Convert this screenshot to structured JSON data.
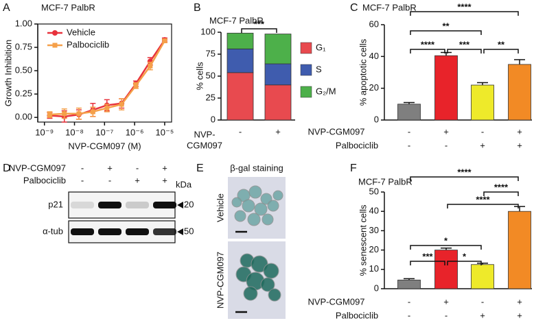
{
  "chart_data": [
    {
      "panel": "A",
      "type": "line",
      "title": "MCF-7 PalbR",
      "xlabel": "NVP-CGM097 (M)",
      "ylabel": "Growth Inhibition",
      "xscale": "log",
      "legend": "upper left",
      "x": [
        1.5e-09,
        4.6e-09,
        1.4e-08,
        4.1e-08,
        1.2e-07,
        3.7e-07,
        1.1e-06,
        3.3e-06,
        1e-05
      ],
      "series": [
        {
          "name": "Vehicle",
          "color": "#e8323c",
          "values": [
            0.02,
            0.01,
            0.03,
            0.08,
            0.13,
            0.15,
            0.36,
            0.6,
            0.83
          ],
          "errors": [
            0.03,
            0.06,
            0.05,
            0.07,
            0.06,
            0.05,
            0.03,
            0.04,
            0.02
          ]
        },
        {
          "name": "Palbociclib",
          "color": "#f5a04a",
          "values": [
            0.03,
            0.04,
            0.04,
            0.06,
            0.1,
            0.14,
            0.34,
            0.55,
            0.82
          ],
          "errors": [
            0.03,
            0.05,
            0.06,
            0.05,
            0.04,
            0.06,
            0.03,
            0.04,
            0.02
          ]
        }
      ],
      "xlim": [
        6e-10,
        1.7e-05
      ],
      "xticks": [
        {
          "value": 1e-09,
          "label": "10⁻⁹"
        },
        {
          "value": 1e-08,
          "label": "10⁻⁸"
        },
        {
          "value": 1e-07,
          "label": "10⁻⁷"
        },
        {
          "value": 1e-06,
          "label": "10⁻⁶"
        },
        {
          "value": 1e-05,
          "label": "10⁻⁵"
        }
      ],
      "ylim": [
        -0.05,
        1.0
      ],
      "yticks": [
        {
          "value": 0,
          "label": "0.00"
        },
        {
          "value": 0.25,
          "label": "0.25"
        },
        {
          "value": 0.5,
          "label": "0.50"
        },
        {
          "value": 0.75,
          "label": "0.75"
        },
        {
          "value": 1,
          "label": "1.00"
        }
      ]
    },
    {
      "panel": "B",
      "type": "stacked_bar",
      "title": "MCF-7 PalbR",
      "ylabel": "% cells",
      "xlabel": [
        "NVP-",
        "CGM097"
      ],
      "categories": [
        "-",
        "+"
      ],
      "series": [
        {
          "name": "G₁",
          "color": "#e84a4f",
          "values": [
            54,
            40
          ]
        },
        {
          "name": "S",
          "color": "#3f5cae",
          "values": [
            27,
            24
          ]
        },
        {
          "name": "G₂/M",
          "color": "#4db04a",
          "values": [
            18,
            34
          ]
        }
      ],
      "ylim": [
        0,
        100
      ],
      "yticks": [
        0,
        25,
        50,
        75,
        100
      ],
      "comparisons": [
        {
          "label": "***",
          "bars": [
            0,
            1
          ]
        }
      ]
    },
    {
      "panel": "C",
      "type": "bar",
      "title": "MCF-7 PalbR",
      "ylabel": "% apoptotic cells",
      "values": [
        10,
        40.5,
        22,
        35
      ],
      "errors": [
        1,
        2,
        1.5,
        3
      ],
      "colors": [
        "#7f7f7f",
        "#e8232a",
        "#eeea2a",
        "#f28a25"
      ],
      "conditions": [
        {
          "label": "NVP-CGM097",
          "signs": [
            "-",
            "+",
            "-",
            "+"
          ]
        },
        {
          "label": "Palbociclib",
          "signs": [
            "-",
            "-",
            "+",
            "+"
          ]
        }
      ],
      "ylim": [
        0,
        60
      ],
      "yticks": [
        0,
        20,
        40,
        60
      ],
      "comparisons": [
        {
          "label": "****",
          "bars": [
            0,
            3
          ]
        },
        {
          "label": "**",
          "bars": [
            0,
            2
          ]
        },
        {
          "label": "****",
          "bars": [
            0,
            1
          ]
        },
        {
          "label": "***",
          "bars": [
            1,
            2
          ]
        },
        {
          "label": "**",
          "bars": [
            2,
            3
          ]
        }
      ]
    },
    {
      "panel": "F",
      "type": "bar",
      "title": "MCF-7 PalbR",
      "ylabel": "% senescent cells",
      "values": [
        4.5,
        20,
        12.5,
        40
      ],
      "errors": [
        0.7,
        1,
        0.7,
        2.5
      ],
      "colors": [
        "#7f7f7f",
        "#e8232a",
        "#eeea2a",
        "#f28a25"
      ],
      "conditions": [
        {
          "label": "NVP-CGM097",
          "signs": [
            "-",
            "+",
            "-",
            "+"
          ]
        },
        {
          "label": "Palbociclib",
          "signs": [
            "-",
            "-",
            "+",
            "+"
          ]
        }
      ],
      "ylim": [
        0,
        50
      ],
      "yticks": [
        0,
        10,
        20,
        30,
        40,
        50
      ],
      "comparisons": [
        {
          "label": "****",
          "bars": [
            0,
            3
          ]
        },
        {
          "label": "****",
          "bars": [
            2,
            3
          ]
        },
        {
          "label": "****",
          "bars": [
            1,
            3
          ]
        },
        {
          "label": "*",
          "bars": [
            0,
            2
          ]
        },
        {
          "label": "***",
          "bars": [
            0,
            1
          ]
        },
        {
          "label": "*",
          "bars": [
            1,
            2
          ]
        }
      ]
    }
  ],
  "blot": {
    "panel": "D",
    "unit": "kDa",
    "conditions": [
      {
        "label": "NVP-CGM097",
        "signs": [
          "-",
          "+",
          "-",
          "+"
        ]
      },
      {
        "label": "Palbociclib",
        "signs": [
          "-",
          "-",
          "+",
          "+"
        ]
      }
    ],
    "rows": [
      {
        "label": "p21",
        "marker": "20"
      },
      {
        "label": "α-tub",
        "marker": "50"
      }
    ]
  },
  "staining": {
    "panel": "E",
    "title": "β-gal staining",
    "images": [
      "Vehicle",
      "NVP-CGM097"
    ]
  }
}
